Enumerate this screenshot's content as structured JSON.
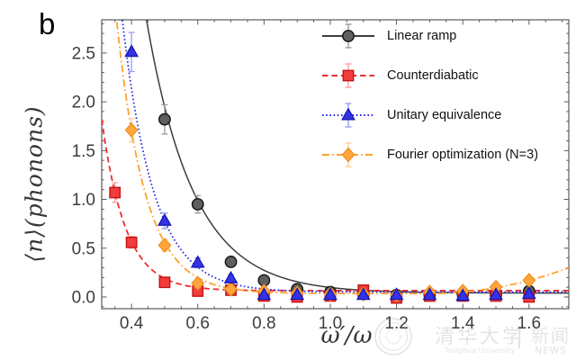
{
  "panel_label": "b",
  "axes": {
    "x_label": "ω′/ω",
    "y_label": "⟨n⟩(phonons)",
    "x_ticks": {
      "values": [
        0.4,
        0.6,
        0.8,
        1.0,
        1.2,
        1.4,
        1.6
      ],
      "labels": [
        "0.4",
        "0.6",
        "0.8",
        "1.0",
        "1.2",
        "1.4",
        "1.6"
      ],
      "minor_step": 0.05
    },
    "y_ticks": {
      "values": [
        0.0,
        0.5,
        1.0,
        1.5,
        2.0,
        2.5
      ],
      "labels": [
        "0.0",
        "0.5",
        "1.0",
        "1.5",
        "2.0",
        "2.5"
      ],
      "minor_step": 0.1
    }
  },
  "watermark": {
    "university_cjk": "清华大学",
    "university_en": "Tsinghua University",
    "divider": "|",
    "news_cjk": "新闻",
    "news_en": "NEWS",
    "color": "#e4e4e4"
  },
  "chart_data": {
    "type": "scatter",
    "title": "",
    "xlabel": "ω′/ω",
    "ylabel": "⟨n⟩(phonons)",
    "xlim": [
      0.31,
      1.72
    ],
    "ylim": [
      -0.12,
      2.84
    ],
    "grid": false,
    "legend_position": "top-right",
    "frame_color": "#4d4d4d",
    "tick_label_color": "#3d3d3d",
    "series": [
      {
        "name": "Linear ramp",
        "marker": "circle",
        "line_style": "solid",
        "line_color": "#3d3d3d",
        "marker_fill": "#5f5f5f",
        "marker_edge": "#121212",
        "errorbar_color": "#9e9e9e",
        "curve_fit": {
          "A": 63.2,
          "k": 7.0,
          "c": 0.04
        },
        "points": [
          [
            0.5,
            1.82,
            0.15
          ],
          [
            0.6,
            0.95,
            0.09
          ],
          [
            0.7,
            0.36,
            0.05
          ],
          [
            0.8,
            0.17,
            0.04
          ],
          [
            0.9,
            0.08,
            0.03
          ],
          [
            1.0,
            0.05,
            0.03
          ],
          [
            1.1,
            0.03,
            0.02
          ],
          [
            1.2,
            0.02,
            0.02
          ],
          [
            1.3,
            0.02,
            0.02
          ],
          [
            1.4,
            0.03,
            0.02
          ],
          [
            1.5,
            0.02,
            0.02
          ],
          [
            1.6,
            0.06,
            0.03
          ]
        ]
      },
      {
        "name": "Counterdiabatic",
        "marker": "square",
        "line_style": "dashed",
        "line_color": "#ee2d2d",
        "marker_fill": "#f23b3b",
        "marker_edge": "#c41414",
        "errorbar_color": "#ff9e9e",
        "curve_fit": {
          "A": 130.6,
          "k": 13.9,
          "c": 0.065
        },
        "points": [
          [
            0.35,
            1.07,
            0.1
          ],
          [
            0.4,
            0.56,
            0.06
          ],
          [
            0.5,
            0.15,
            0.04
          ],
          [
            0.6,
            0.06,
            0.03
          ],
          [
            0.7,
            0.07,
            0.03
          ],
          [
            0.8,
            0.01,
            0.02
          ],
          [
            0.9,
            0.0,
            0.02
          ],
          [
            1.0,
            0.01,
            0.02
          ],
          [
            1.1,
            0.07,
            0.03
          ],
          [
            1.2,
            -0.01,
            0.02
          ],
          [
            1.3,
            0.01,
            0.02
          ],
          [
            1.4,
            0.01,
            0.02
          ],
          [
            1.5,
            0.01,
            0.02
          ],
          [
            1.6,
            0.0,
            0.02
          ]
        ]
      },
      {
        "name": "Unitary equivalence",
        "marker": "triangle",
        "line_style": "dotted",
        "line_color": "#2a2ae0",
        "marker_fill": "#3434e6",
        "marker_edge": "#1616b4",
        "errorbar_color": "#9c9cf2",
        "curve_fit": {
          "A": 139.0,
          "k": 10.5,
          "c": 0.05
        },
        "points": [
          [
            0.4,
            2.51,
            0.2
          ],
          [
            0.5,
            0.78,
            0.08
          ],
          [
            0.6,
            0.35,
            0.05
          ],
          [
            0.7,
            0.19,
            0.04
          ],
          [
            0.8,
            0.02,
            0.03
          ],
          [
            0.9,
            0.02,
            0.02
          ],
          [
            1.0,
            0.02,
            0.02
          ],
          [
            1.1,
            0.02,
            0.02
          ],
          [
            1.2,
            0.02,
            0.02
          ],
          [
            1.3,
            0.02,
            0.02
          ],
          [
            1.4,
            0.01,
            0.02
          ],
          [
            1.5,
            0.02,
            0.02
          ],
          [
            1.6,
            0.03,
            0.02
          ]
        ]
      },
      {
        "name": "Fourier optimization (N=3)",
        "marker": "diamond",
        "line_style": "dashdot",
        "line_color": "#ffa02e",
        "marker_fill": "#ffa63c",
        "marker_edge": "#ef8f1f",
        "errorbar_color": "#ffd096",
        "curve_fit": {
          "A": 172.4,
          "k": 11.6,
          "c": 0.035,
          "tail_amp": 1.5,
          "tail_start": 1.3
        },
        "points": [
          [
            0.4,
            1.71,
            0.12
          ],
          [
            0.5,
            0.53,
            0.06
          ],
          [
            0.6,
            0.14,
            0.04
          ],
          [
            0.7,
            0.08,
            0.03
          ],
          [
            0.8,
            0.06,
            0.03
          ],
          [
            0.9,
            0.04,
            0.02
          ],
          [
            1.0,
            0.03,
            0.02
          ],
          [
            1.1,
            0.03,
            0.02
          ],
          [
            1.2,
            0.02,
            0.02
          ],
          [
            1.3,
            0.05,
            0.02
          ],
          [
            1.4,
            0.06,
            0.03
          ],
          [
            1.5,
            0.1,
            0.03
          ],
          [
            1.6,
            0.17,
            0.04
          ]
        ]
      }
    ]
  }
}
